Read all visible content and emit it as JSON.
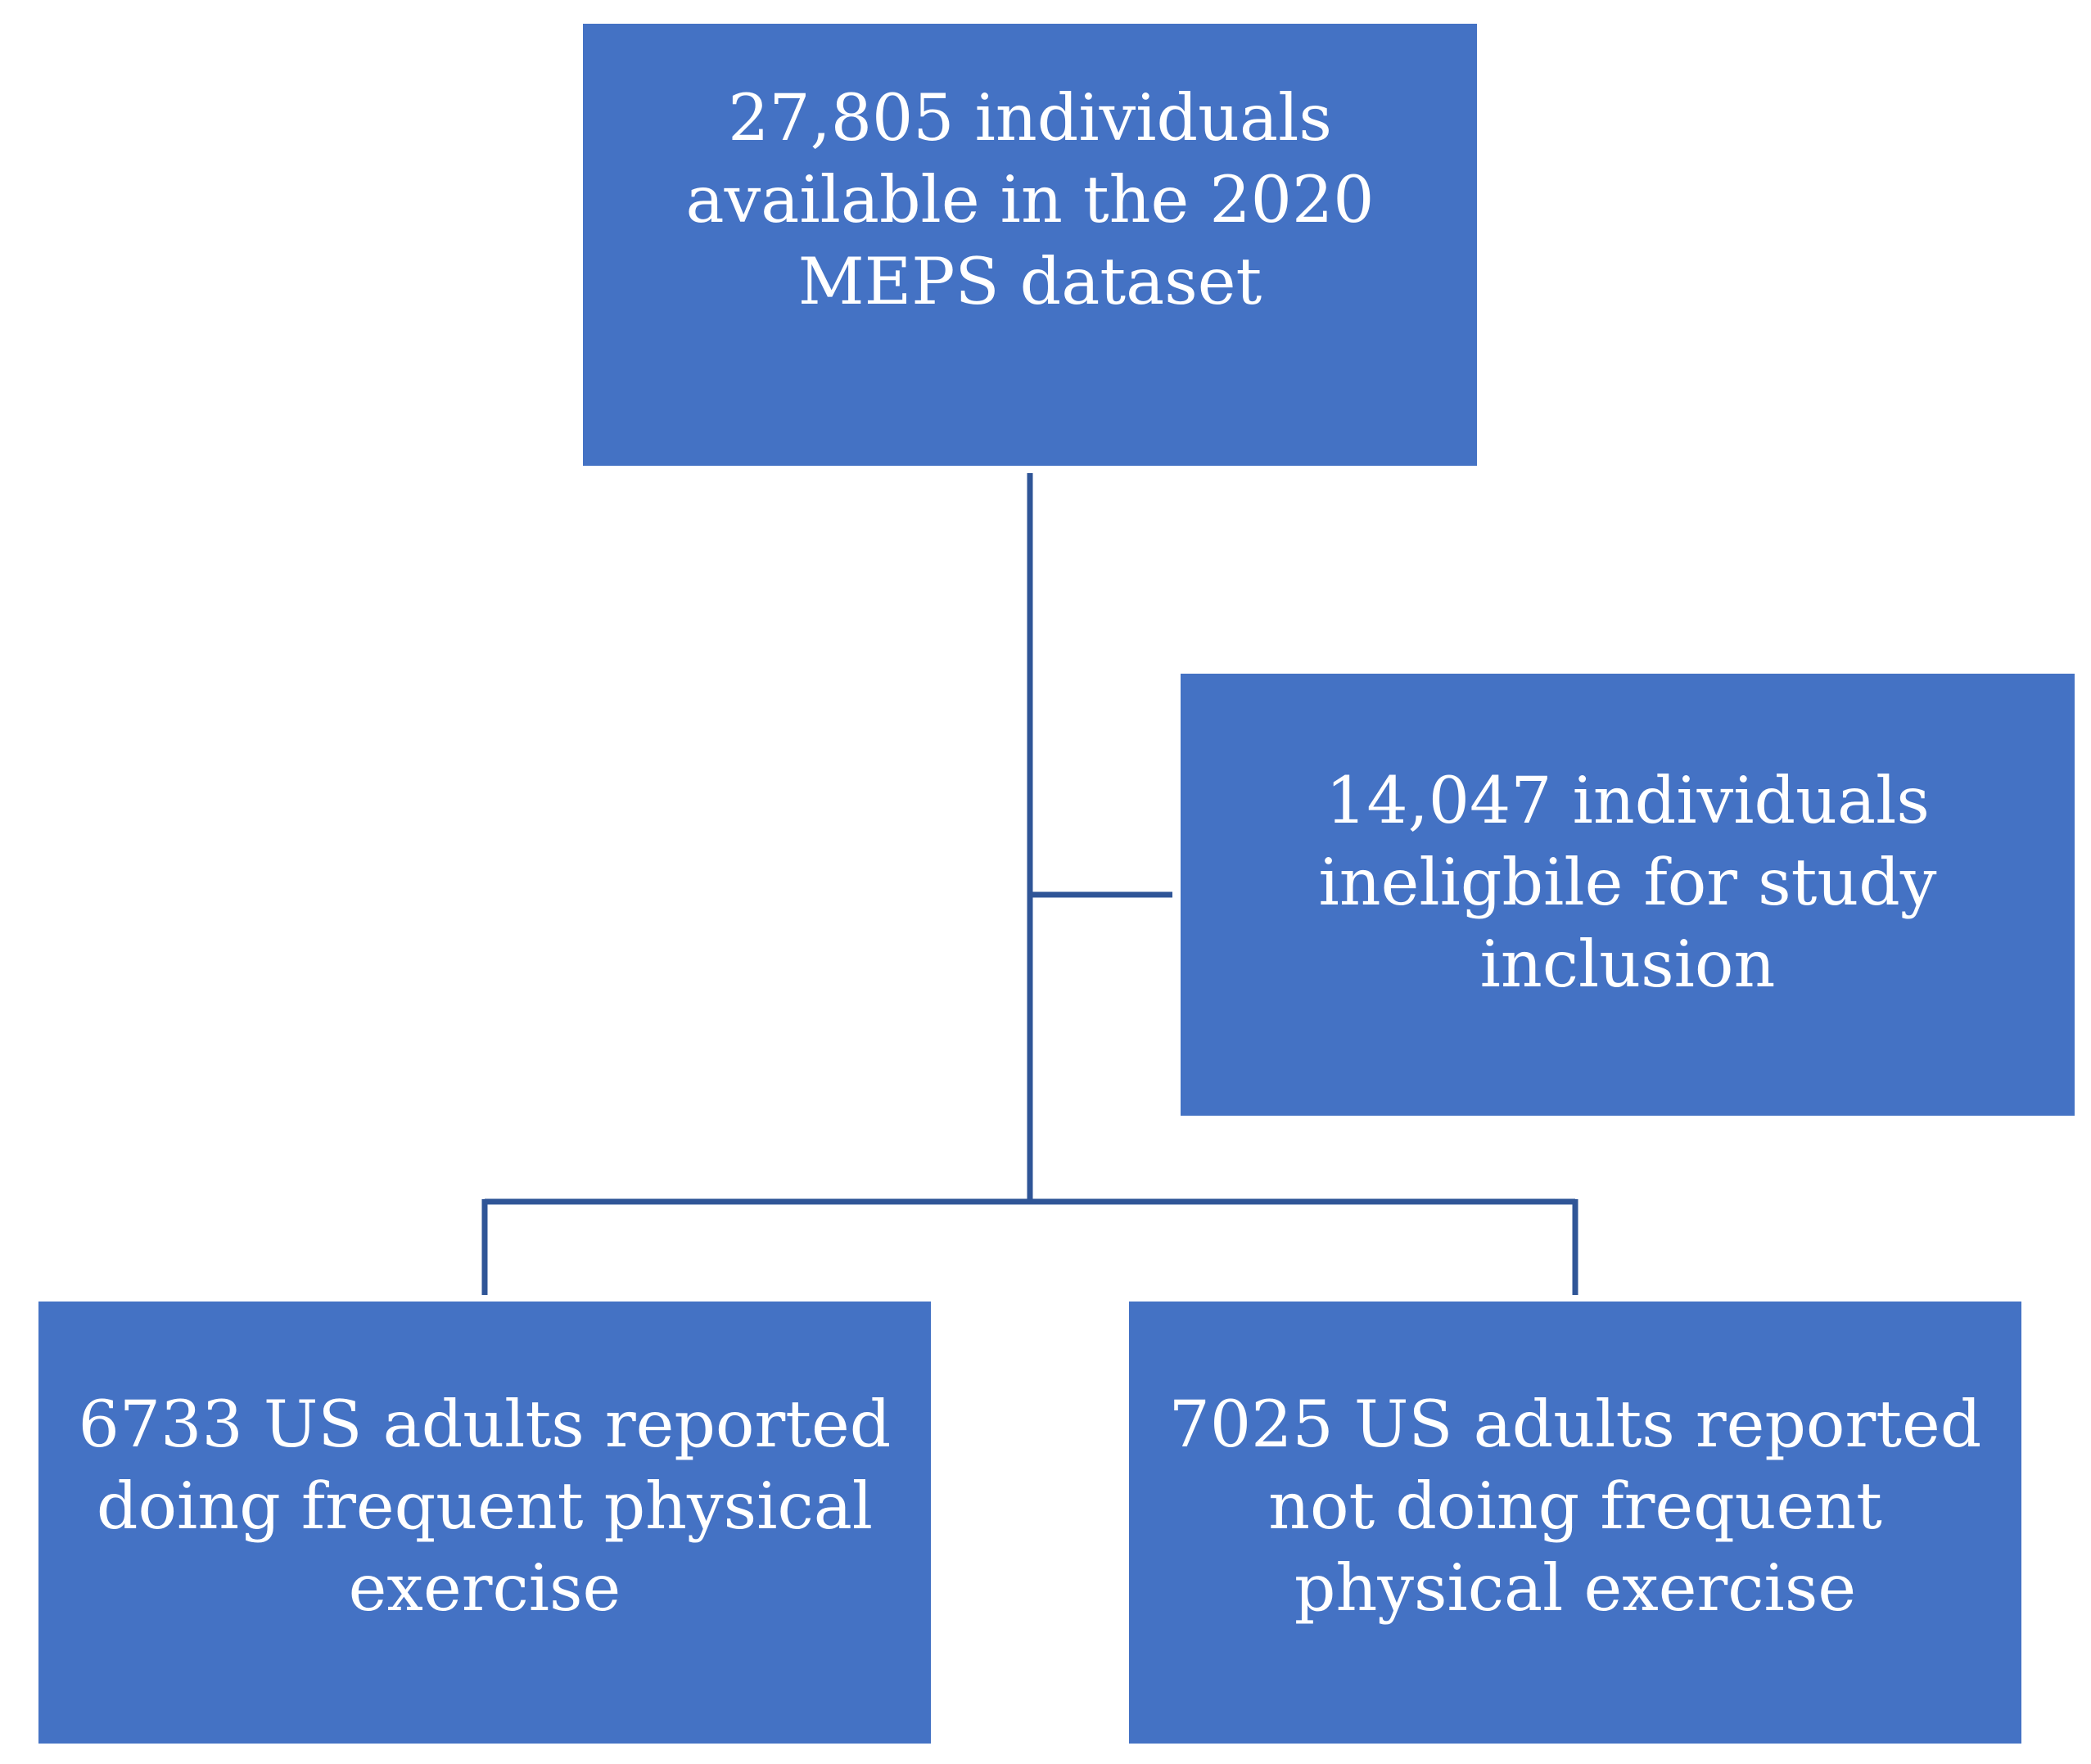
{
  "colors": {
    "box_fill": "#4472C4",
    "box_text": "#ffffff",
    "connector": "#2F5597"
  },
  "boxes": {
    "top": "27,805 individuals available in the 2020 MEPS dataset",
    "excluded": "14,047 individuals ineligbile for study inclusion",
    "left": "6733 US adults reported doing frequent physical exercise",
    "right": "7025 US adults reported not doing frequent physical exercise"
  }
}
